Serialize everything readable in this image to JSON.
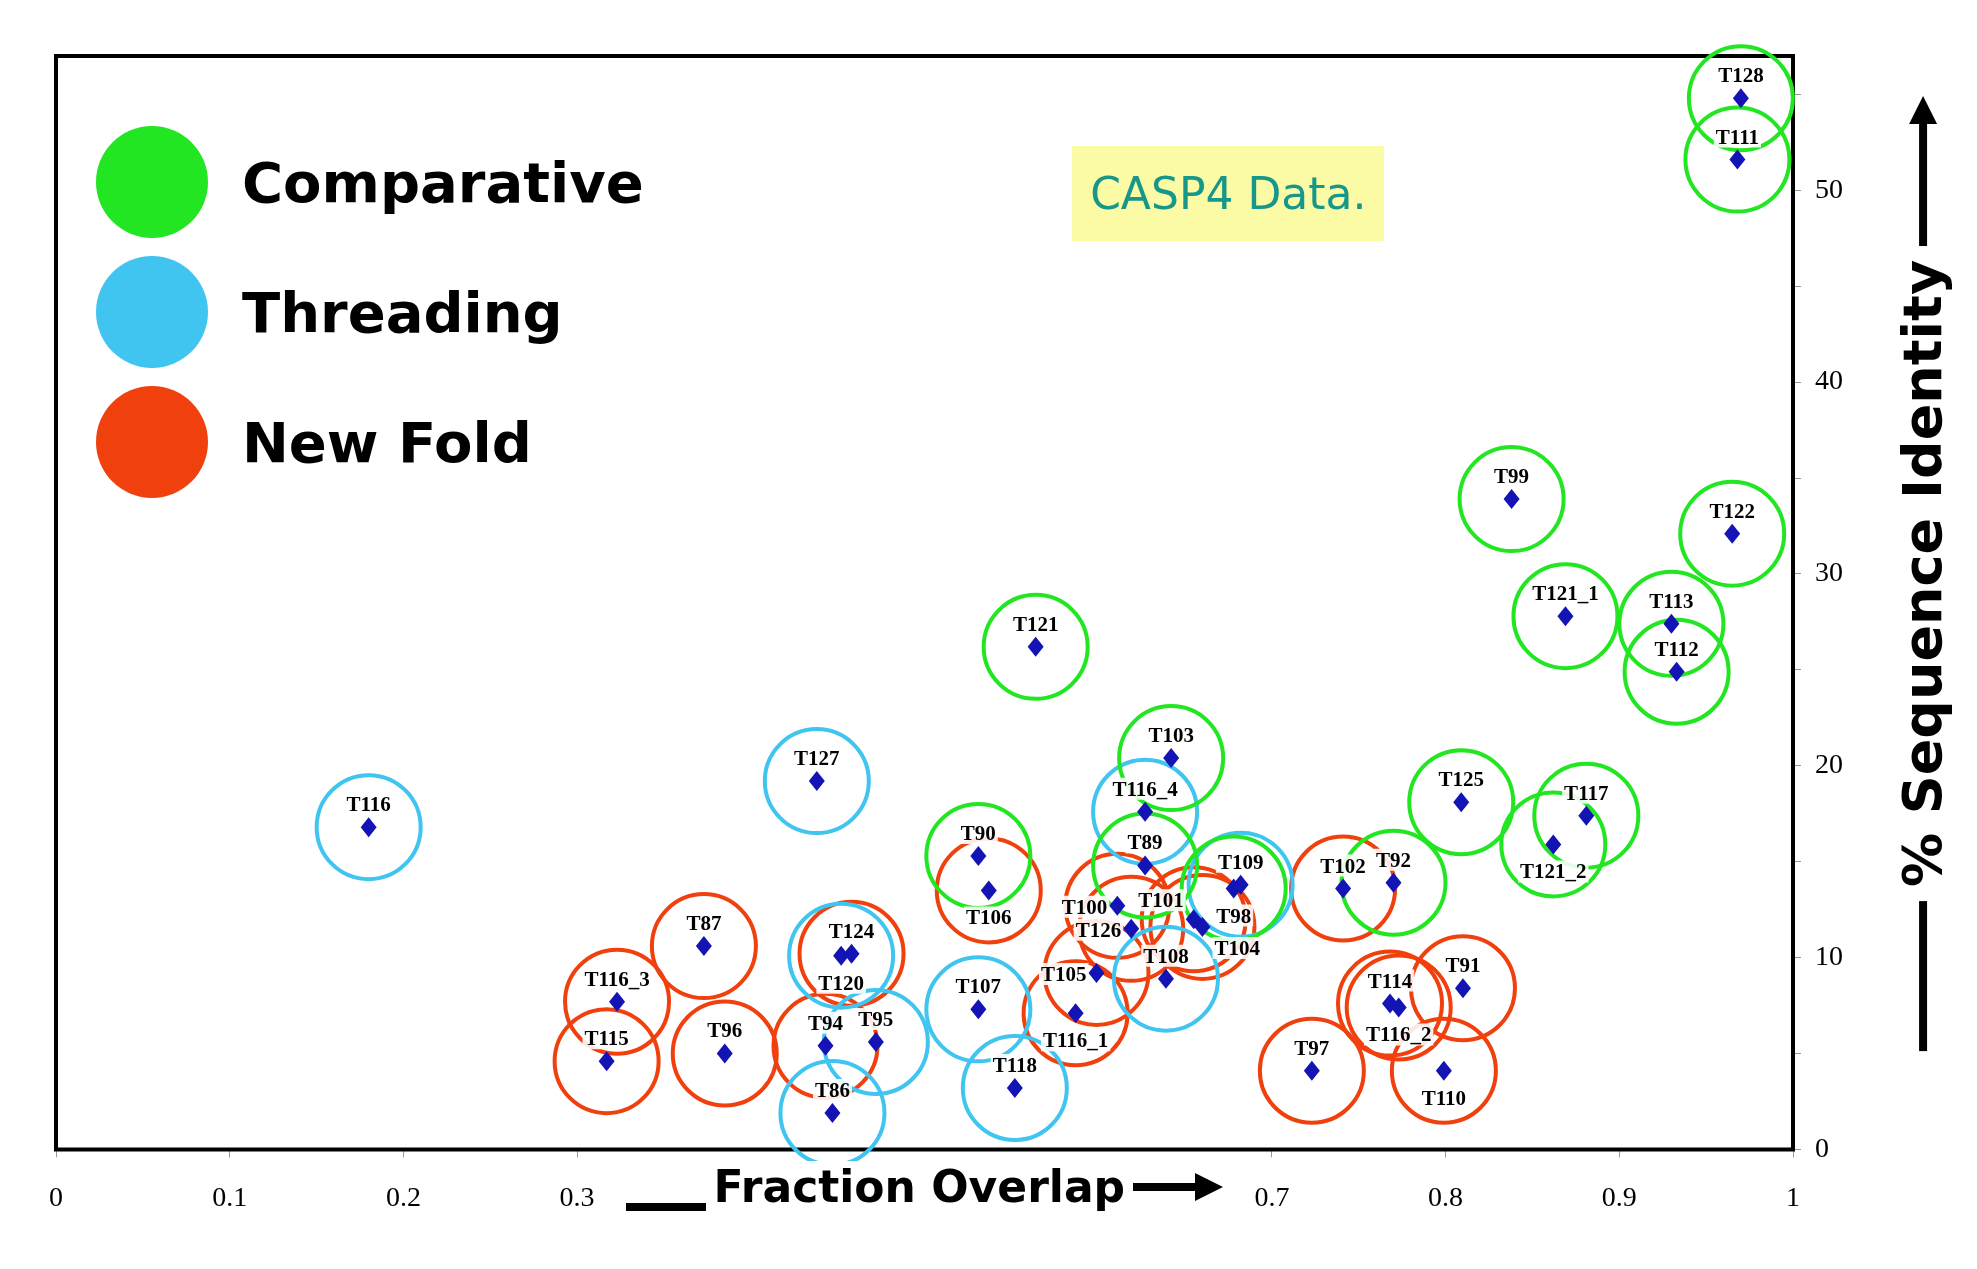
{
  "chart_data": {
    "type": "scatter",
    "xlabel": "Fraction Overlap",
    "ylabel": "% Sequence Identity",
    "annotations": [
      "CASP4 Data."
    ],
    "xlim": [
      0,
      1
    ],
    "ylim": [
      0,
      57
    ],
    "xticks": [
      0,
      0.1,
      0.2,
      0.3,
      0.7,
      0.8,
      0.9,
      1
    ],
    "yticks": [
      0,
      {
        "value": 5,
        "label": null
      },
      10,
      {
        "value": 15,
        "label": null
      },
      20,
      {
        "value": 25,
        "label": null
      },
      30,
      {
        "value": 35,
        "label": null
      },
      40,
      {
        "value": 45,
        "label": null
      },
      50,
      {
        "value": 55,
        "label": null
      }
    ],
    "grid": false,
    "legend": "top left",
    "marker": "circle",
    "series": [
      {
        "name": "Comparative",
        "color": "#22e622",
        "x": [
          0.97,
          0.968,
          0.838,
          0.965,
          0.869,
          0.93,
          0.933,
          0.564,
          0.642,
          0.809,
          0.881,
          0.862,
          0.77,
          0.627,
          0.678,
          0.531
        ],
        "values": [
          54.8,
          51.6,
          33.9,
          32.1,
          27.8,
          27.4,
          24.9,
          26.2,
          20.4,
          18.1,
          17.4,
          15.9,
          13.9,
          14.8,
          13.6,
          15.3
        ],
        "value_labels": [
          "T128",
          "T111",
          "T99",
          "T122",
          "T121_1",
          "T113",
          "T112",
          "T121",
          "T103",
          "T125",
          "T117",
          "T121_2",
          "T92",
          "T89",
          "T98",
          "T90"
        ]
      },
      {
        "name": "Threading",
        "color": "#40c4f0",
        "x": [
          0.18,
          0.438,
          0.627,
          0.682,
          0.452,
          0.472,
          0.447,
          0.531,
          0.552,
          0.639
        ],
        "values": [
          16.8,
          19.2,
          17.6,
          13.8,
          10.1,
          5.6,
          1.9,
          7.3,
          3.2,
          8.9
        ],
        "value_labels": [
          "T116",
          "T127",
          "T116_4",
          "T109",
          "T120",
          "T95",
          "T86",
          "T107",
          "T118",
          "T108"
        ]
      },
      {
        "name": "New Fold",
        "color": "#f0400e",
        "x": [
          0.323,
          0.317,
          0.385,
          0.443,
          0.373,
          0.458,
          0.537,
          0.611,
          0.619,
          0.599,
          0.587,
          0.655,
          0.66,
          0.741,
          0.768,
          0.773,
          0.723,
          0.799,
          0.81
        ],
        "values": [
          7.7,
          4.6,
          5.0,
          5.4,
          10.6,
          10.2,
          13.5,
          12.7,
          11.5,
          9.2,
          7.1,
          12.0,
          11.6,
          13.6,
          7.6,
          7.4,
          4.1,
          4.1,
          8.4
        ],
        "value_labels": [
          "T116_3",
          "T115",
          "T96",
          "T94",
          "T87",
          "T124",
          "T106",
          "T100",
          "T126",
          "T105",
          "T116_1",
          "T101",
          "T104",
          "T102",
          "T114",
          "T116_2",
          "T97",
          "T110",
          "T91"
        ]
      }
    ]
  }
}
